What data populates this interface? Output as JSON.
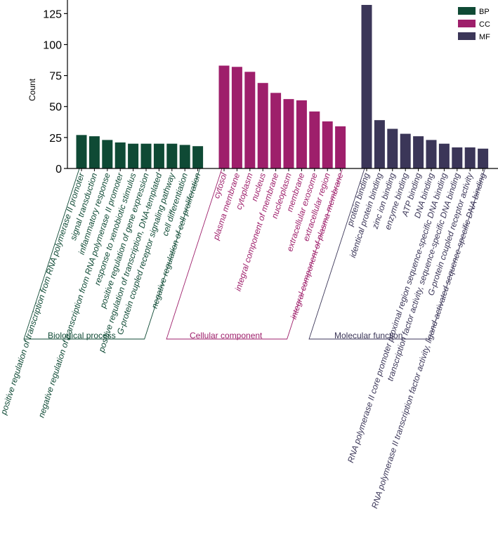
{
  "colors": {
    "BP": "#0f4a35",
    "CC": "#9e1f6b",
    "MF": "#3b3658"
  },
  "chart_data": {
    "type": "bar",
    "ylabel": "Count",
    "xlabel": "",
    "ylim": [
      0,
      132
    ],
    "yticks": [
      0,
      25,
      50,
      75,
      100,
      125
    ],
    "grid": false,
    "legend": {
      "placement": "top-right",
      "entries": [
        {
          "key": "BP",
          "label": "BP"
        },
        {
          "key": "CC",
          "label": "CC"
        },
        {
          "key": "MF",
          "label": "MF"
        }
      ]
    },
    "groups": [
      {
        "key": "BP",
        "label": "Biological process",
        "terms": [
          {
            "name": "positive regulation of transcription from RNA polymerase II promoter",
            "value": 27
          },
          {
            "name": "signal transduction",
            "value": 26
          },
          {
            "name": "inflammatory response",
            "value": 23
          },
          {
            "name": "negative regulation of transcription from RNA polymerase II promoter",
            "value": 21
          },
          {
            "name": "response to xenobiotic stimulus",
            "value": 20
          },
          {
            "name": "positive regulation of gene expression",
            "value": 20
          },
          {
            "name": "positive regulation of transcription, DNA-templated",
            "value": 20
          },
          {
            "name": "G-protein coupled receptor signaling pathway",
            "value": 20
          },
          {
            "name": "cell differentiation",
            "value": 19
          },
          {
            "name": "negative regulation of cell proliferation",
            "value": 18
          }
        ]
      },
      {
        "key": "CC",
        "label": "Cellular component",
        "terms": [
          {
            "name": "cytosol",
            "value": 83
          },
          {
            "name": "plasma membrane",
            "value": 82
          },
          {
            "name": "cytoplasm",
            "value": 78
          },
          {
            "name": "nucleus",
            "value": 69
          },
          {
            "name": "integral component of membrane",
            "value": 61
          },
          {
            "name": "nucleoplasm",
            "value": 56
          },
          {
            "name": "membrane",
            "value": 55
          },
          {
            "name": "extracellular exosome",
            "value": 46
          },
          {
            "name": "extracellular region",
            "value": 38
          },
          {
            "name": "integral component of plasma membrane",
            "value": 34
          }
        ]
      },
      {
        "key": "MF",
        "label": "Molecular function",
        "terms": [
          {
            "name": "protein binding",
            "value": 132
          },
          {
            "name": "identical protein binding",
            "value": 39
          },
          {
            "name": "zinc ion binding",
            "value": 32
          },
          {
            "name": "enzyme binding",
            "value": 28
          },
          {
            "name": "ATP binding",
            "value": 26
          },
          {
            "name": "DNA binding",
            "value": 23
          },
          {
            "name": "RNA polymerase II core promoter proximal region sequence-specific DNA binding",
            "value": 20
          },
          {
            "name": "transcription factor activity, sequence-specific DNA binding",
            "value": 17
          },
          {
            "name": "G-protein coupled receptor activity",
            "value": 17
          },
          {
            "name": "RNA polymerase II transcription factor activity, ligand-activated sequence-specific DNA binding",
            "value": 16
          }
        ]
      }
    ]
  }
}
